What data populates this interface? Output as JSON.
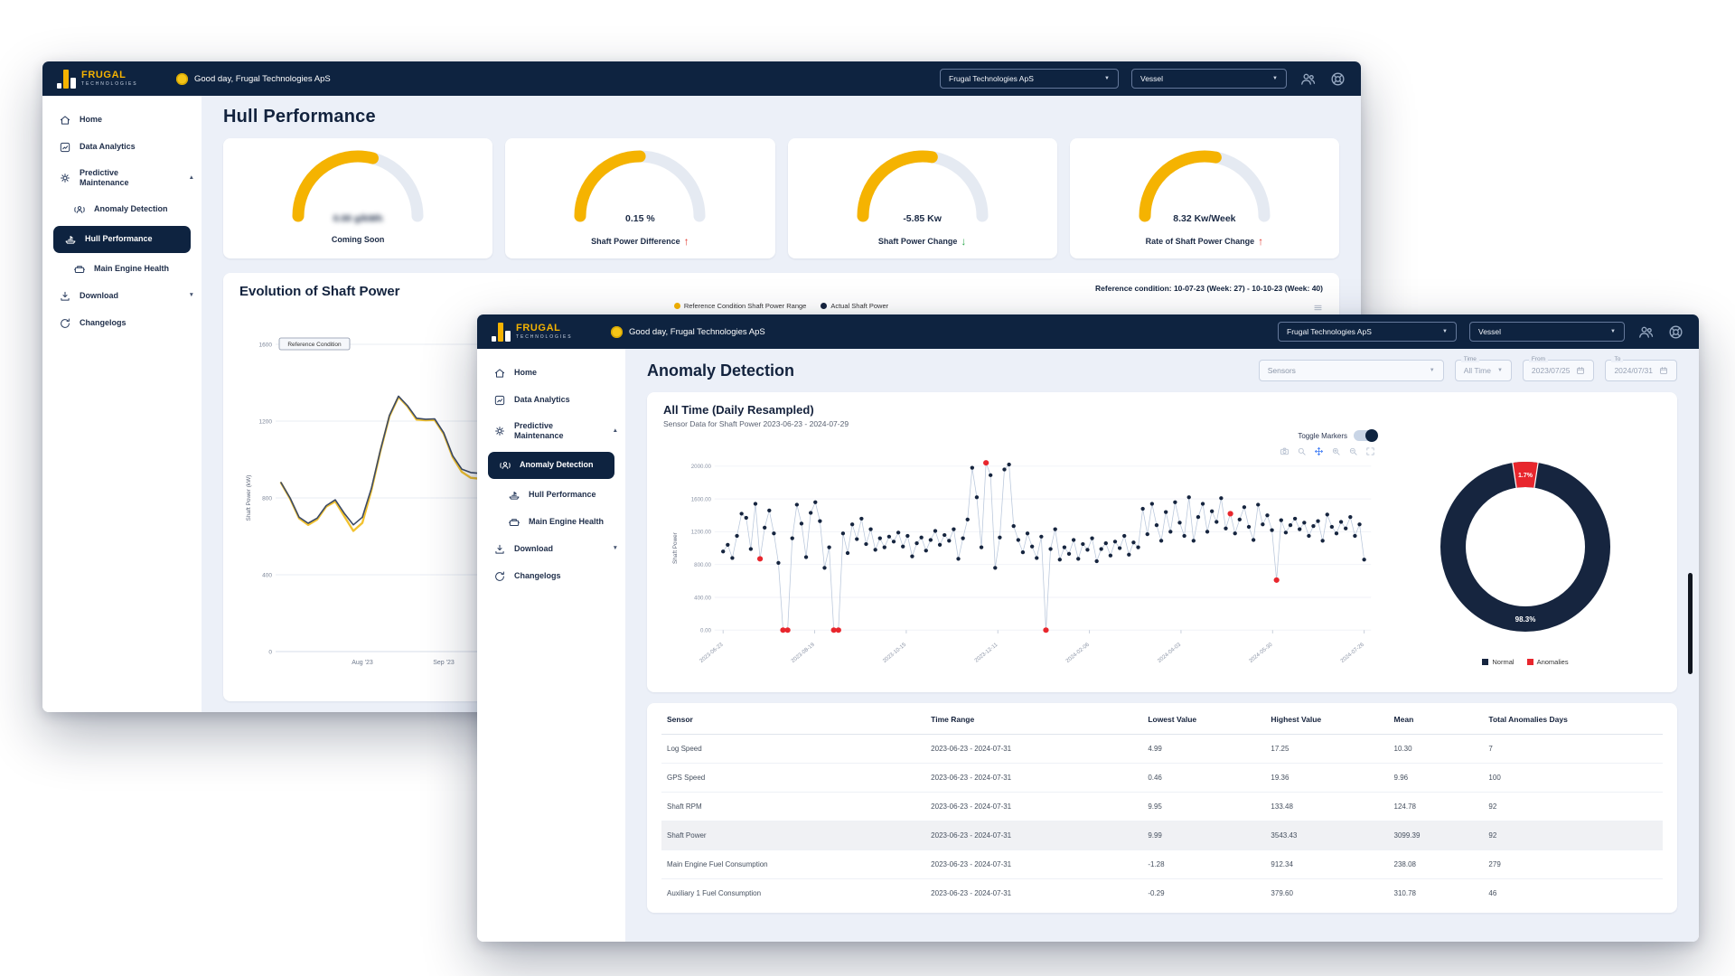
{
  "brand": {
    "name": "FRUGAL",
    "sub": "TECHNOLOGIES"
  },
  "header": {
    "greeting": "Good day, Frugal Technologies ApS",
    "org_select": "Frugal Technologies ApS",
    "vessel_select": "Vessel",
    "icons": [
      "users-icon",
      "lifebuoy-icon"
    ]
  },
  "sidebar": {
    "items": [
      {
        "label": "Home",
        "icon": "home"
      },
      {
        "label": "Data Analytics",
        "icon": "analytics"
      },
      {
        "label": "Predictive Maintenance",
        "icon": "maintenance",
        "chevron": "up"
      },
      {
        "label": "Anomaly Detection",
        "icon": "anomaly",
        "indent": true
      },
      {
        "label": "Hull Performance",
        "icon": "hull",
        "indent": true
      },
      {
        "label": "Main Engine Health",
        "icon": "engine",
        "indent": true
      },
      {
        "label": "Download",
        "icon": "download",
        "chevron": "down"
      },
      {
        "label": "Changelogs",
        "icon": "changelog"
      }
    ]
  },
  "back_window": {
    "selected_nav": "Hull Performance",
    "title": "Hull Performance",
    "gauges": [
      {
        "value": "0.00 g/kWh",
        "label": "Coming Soon",
        "trend": "none",
        "arc_pct": 58,
        "blurred": true
      },
      {
        "value": "0.15 %",
        "label": "Shaft Power Difference",
        "trend": "up",
        "arc_pct": 50,
        "blurred": false
      },
      {
        "value": "-5.85 Kw",
        "label": "Shaft Power Change",
        "trend": "down",
        "arc_pct": 55,
        "blurred": false
      },
      {
        "value": "8.32 Kw/Week",
        "label": "Rate of Shaft Power Change",
        "trend": "up",
        "arc_pct": 56,
        "blurred": false
      }
    ],
    "evolution": {
      "title": "Evolution of Shaft Power",
      "reference_note": "Reference condition: 10-07-23 (Week: 27) - 10-10-23 (Week: 40)",
      "badge": "Reference Condition",
      "legend": [
        {
          "label": "Reference Condition Shaft Power Range",
          "color": "#F5B301"
        },
        {
          "label": "Actual Shaft Power",
          "color": "#16253F"
        }
      ],
      "chart_data": {
        "type": "line",
        "title": "Evolution of Shaft Power",
        "ylabel": "Shaft Power (kW)",
        "ylim": [
          0,
          1600
        ],
        "yticks": [
          1600,
          1200,
          800,
          400,
          0
        ],
        "xticks": [
          "Aug '23",
          "Sep '23"
        ],
        "series": [
          {
            "name": "Reference Condition Shaft Power Range",
            "color": "#F2C230",
            "values": [
              878,
              796,
              694,
              660,
              688,
              755,
              782,
              705,
              628,
              670,
              840,
              1045,
              1226,
              1326,
              1276,
              1208,
              1204,
              1206,
              1134,
              1012,
              936,
              905,
              900,
              925,
              948
            ]
          },
          {
            "name": "Actual Shaft Power",
            "color": "#3C4A66",
            "values": [
              880,
              800,
              700,
              668,
              695,
              760,
              790,
              720,
              660,
              700,
              850,
              1050,
              1230,
              1330,
              1280,
              1215,
              1210,
              1212,
              1140,
              1020,
              950,
              932,
              928,
              940,
              955
            ]
          }
        ]
      }
    }
  },
  "front_window": {
    "selected_nav": "Anomaly Detection",
    "title": "Anomaly Detection",
    "filters": {
      "sensors_value": "Sensors",
      "time_label": "Time",
      "time_value": "All Time",
      "from_label": "From",
      "from_value": "2023/07/25",
      "to_label": "To",
      "to_value": "2024/07/31"
    },
    "chart": {
      "title": "All Time (Daily Resampled)",
      "subtitle": "Sensor Data for Shaft Power 2023-06-23 - 2024-07-29",
      "toggle_label": "Toggle Markers",
      "toggle_on": true,
      "modebar_icons": [
        "camera-icon",
        "zoom-icon",
        "pan-icon",
        "zoom-in-icon",
        "zoom-out-icon",
        "autoscale-icon"
      ],
      "chart_data": {
        "type": "scatter",
        "ylabel": "Shaft Power",
        "ylim": [
          0,
          2100
        ],
        "yticks": [
          2000,
          1600,
          1200,
          800,
          400,
          0
        ],
        "xticks": [
          "2023-06-23",
          "2023-08-19",
          "2023-10-15",
          "2023-12-11",
          "2024-02-06",
          "2024-04-03",
          "2024-05-30",
          "2024-07-26"
        ],
        "normal_color": "#16253F",
        "anomaly_color": "#E8262D",
        "connector_color": "#B9C7DB",
        "values": [
          960,
          1040,
          880,
          1150,
          1420,
          1370,
          990,
          1540,
          870,
          1250,
          1460,
          1180,
          820,
          0,
          0,
          1120,
          1530,
          1300,
          890,
          1430,
          1560,
          1330,
          760,
          1010,
          0,
          0,
          1180,
          940,
          1290,
          1110,
          1360,
          1050,
          1230,
          980,
          1120,
          1010,
          1140,
          1080,
          1190,
          1020,
          1150,
          900,
          1060,
          1130,
          970,
          1100,
          1210,
          1040,
          1160,
          1090,
          1230,
          870,
          1120,
          1350,
          1980,
          1620,
          1010,
          2040,
          1890,
          760,
          1130,
          1960,
          2020,
          1270,
          1100,
          950,
          1180,
          1020,
          880,
          1140,
          0,
          990,
          1230,
          860,
          1010,
          930,
          1100,
          870,
          1050,
          980,
          1120,
          840,
          990,
          1060,
          910,
          1080,
          1000,
          1150,
          920,
          1070,
          1010,
          1480,
          1170,
          1540,
          1280,
          1090,
          1440,
          1200,
          1560,
          1310,
          1150,
          1620,
          1090,
          1380,
          1540,
          1200,
          1450,
          1320,
          1610,
          1240,
          1420,
          1180,
          1350,
          1500,
          1260,
          1100,
          1530,
          1290,
          1400,
          1220,
          610,
          1340,
          1190,
          1280,
          1360,
          1230,
          1310,
          1150,
          1270,
          1330,
          1090,
          1410,
          1260,
          1180,
          1320,
          1240,
          1380,
          1150,
          1290,
          860
        ],
        "anomaly_indices": [
          8,
          13,
          14,
          24,
          25,
          57,
          70,
          110,
          120
        ]
      }
    },
    "donut": {
      "chart_data": {
        "type": "pie",
        "labels": [
          "Normal",
          "Anomalies"
        ],
        "values": [
          98.3,
          1.7
        ],
        "colors": [
          "#16253F",
          "#E8262D"
        ],
        "slice_labels": [
          "98.3%",
          "1.7%"
        ],
        "legend_position": "bottom"
      }
    },
    "table": {
      "columns": [
        "Sensor",
        "Time Range",
        "Lowest Value",
        "Highest Value",
        "Mean",
        "Total Anomalies Days"
      ],
      "rows": [
        [
          "Log Speed",
          "2023-06-23 - 2024-07-31",
          "4.99",
          "17.25",
          "10.30",
          "7"
        ],
        [
          "GPS Speed",
          "2023-06-23 - 2024-07-31",
          "0.46",
          "19.36",
          "9.96",
          "100"
        ],
        [
          "Shaft RPM",
          "2023-06-23 - 2024-07-31",
          "9.95",
          "133.48",
          "124.78",
          "92"
        ],
        [
          "Shaft Power",
          "2023-06-23 - 2024-07-31",
          "9.99",
          "3543.43",
          "3099.39",
          "92"
        ],
        [
          "Main Engine Fuel Consumption",
          "2023-06-23 - 2024-07-31",
          "-1.28",
          "912.34",
          "238.08",
          "279"
        ],
        [
          "Auxiliary 1 Fuel Consumption",
          "2023-06-23 - 2024-07-31",
          "-0.29",
          "379.60",
          "310.78",
          "46"
        ]
      ],
      "highlighted_row_index": 3
    }
  },
  "colors": {
    "header_bg": "#0E2340",
    "accent_yellow": "#F5B301",
    "page_bg": "#ECF0F8",
    "anomaly_red": "#E8262D",
    "trend_up_red": "#E0362C",
    "trend_down_green": "#2FA84F"
  }
}
